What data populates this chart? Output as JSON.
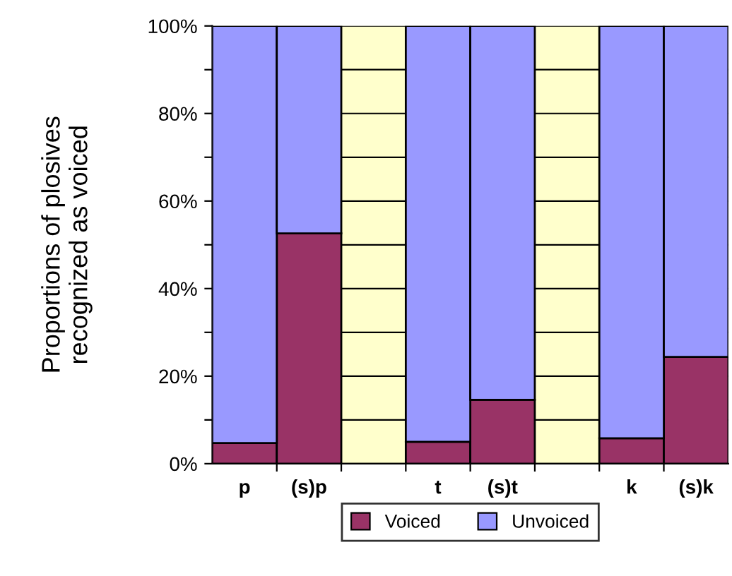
{
  "chart_data": {
    "type": "bar",
    "stacked": true,
    "ylabel": "Proportions of plosives\nrecognized as voiced",
    "categories": [
      "p",
      "(s)p",
      null,
      "t",
      "(s)t",
      null,
      "k",
      "(s)k"
    ],
    "series": [
      {
        "name": "Voiced",
        "color": "#993366",
        "values": [
          4.7,
          52.6,
          null,
          5.0,
          14.6,
          null,
          5.8,
          24.4
        ]
      },
      {
        "name": "Unvoiced",
        "color": "#9999ff",
        "values": [
          95.3,
          47.4,
          null,
          95.0,
          85.4,
          null,
          94.2,
          75.6
        ]
      }
    ],
    "ylim": [
      0,
      100
    ],
    "yticks": [
      {
        "value": 0,
        "label": "0%"
      },
      {
        "value": 10,
        "label": null
      },
      {
        "value": 20,
        "label": "20%"
      },
      {
        "value": 30,
        "label": null
      },
      {
        "value": 40,
        "label": "40%"
      },
      {
        "value": 50,
        "label": null
      },
      {
        "value": 60,
        "label": "60%"
      },
      {
        "value": 70,
        "label": null
      },
      {
        "value": 80,
        "label": "80%"
      },
      {
        "value": 90,
        "label": null
      },
      {
        "value": 100,
        "label": "100%"
      }
    ],
    "bands": [
      {
        "axis": "y",
        "from": 0,
        "to": 100,
        "color": "#ffffcc"
      }
    ],
    "grid": "y",
    "legend": "bottom"
  }
}
